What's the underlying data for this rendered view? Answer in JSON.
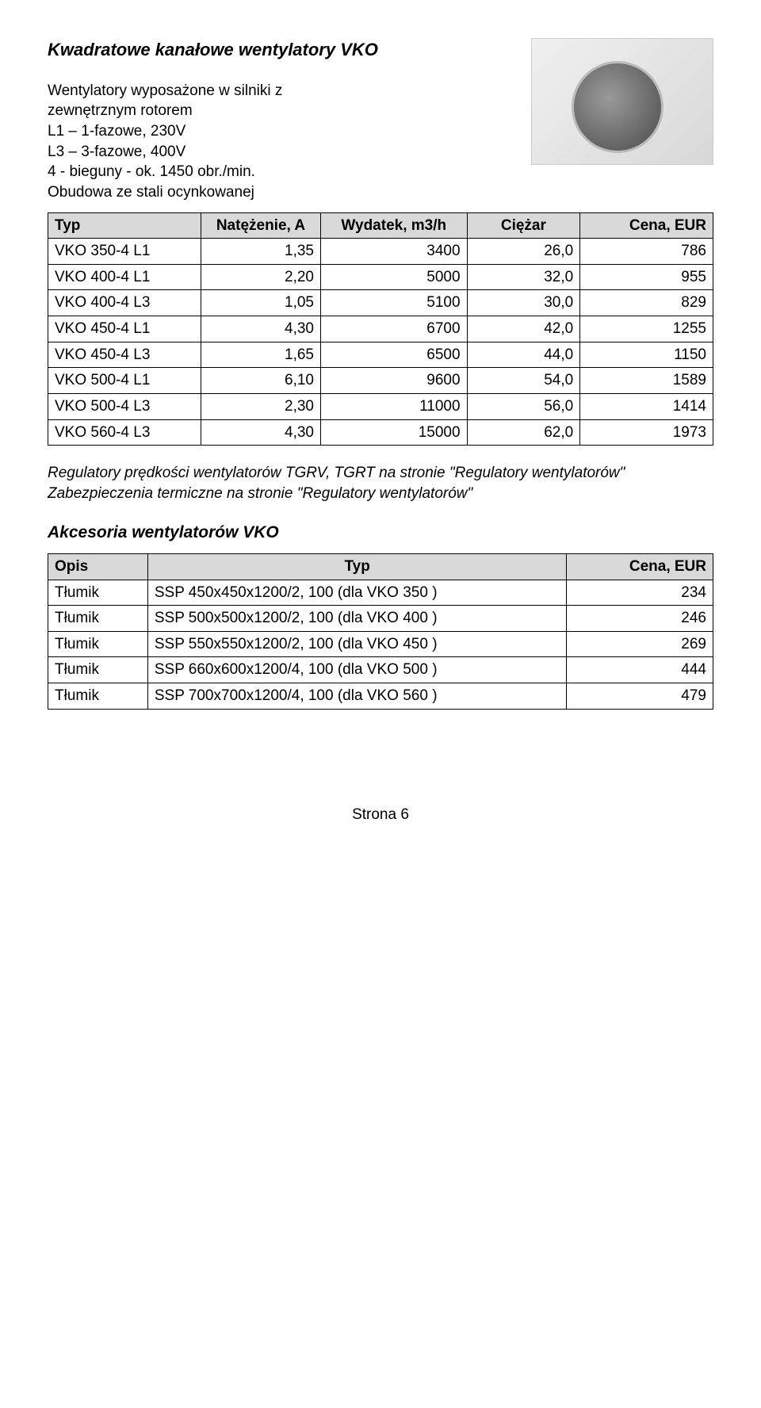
{
  "title": "Kwadratowe kanałowe wentylatory VKO",
  "description": [
    "Wentylatory wyposażone w silniki z",
    "zewnętrznym rotorem",
    "L1 – 1-fazowe, 230V",
    "L3 – 3-fazowe, 400V",
    "4 - bieguny - ok. 1450 obr./min.",
    "Obudowa ze stali ocynkowanej"
  ],
  "spec_headers": {
    "type": "Typ",
    "current": "Natężenie, A",
    "flow": "Wydatek, m3/h",
    "weight": "Ciężar",
    "price": "Cena, EUR"
  },
  "spec_rows": [
    {
      "type": "VKO 350-4  L1",
      "current": "1,35",
      "flow": "3400",
      "weight": "26,0",
      "price": "786"
    },
    {
      "type": "VKO 400-4  L1",
      "current": "2,20",
      "flow": "5000",
      "weight": "32,0",
      "price": "955"
    },
    {
      "type": "VKO 400-4  L3",
      "current": "1,05",
      "flow": "5100",
      "weight": "30,0",
      "price": "829"
    },
    {
      "type": "VKO 450-4  L1",
      "current": "4,30",
      "flow": "6700",
      "weight": "42,0",
      "price": "1255"
    },
    {
      "type": "VKO 450-4  L3",
      "current": "1,65",
      "flow": "6500",
      "weight": "44,0",
      "price": "1150"
    },
    {
      "type": "VKO 500-4  L1",
      "current": "6,10",
      "flow": "9600",
      "weight": "54,0",
      "price": "1589"
    },
    {
      "type": "VKO 500-4  L3",
      "current": "2,30",
      "flow": "11000",
      "weight": "56,0",
      "price": "1414"
    },
    {
      "type": "VKO 560-4  L3",
      "current": "4,30",
      "flow": "15000",
      "weight": "62,0",
      "price": "1973"
    }
  ],
  "notes": [
    "Regulatory prędkości wentylatorów TGRV, TGRT na stronie \"Regulatory wentylatorów\"",
    "Zabezpieczenia termiczne na stronie \"Regulatory wentylatorów\""
  ],
  "accessories_title": "Akcesoria wentylatorów VKO",
  "acc_headers": {
    "desc": "Opis",
    "type": "Typ",
    "price": "Cena, EUR"
  },
  "acc_rows": [
    {
      "desc": "Tłumik",
      "type": "SSP 450x450x1200/2, 100 (dla VKO 350 )",
      "price": "234"
    },
    {
      "desc": "Tłumik",
      "type": "SSP 500x500x1200/2, 100 (dla VKO 400 )",
      "price": "246"
    },
    {
      "desc": "Tłumik",
      "type": "SSP 550x550x1200/2, 100 (dla VKO 450 )",
      "price": "269"
    },
    {
      "desc": "Tłumik",
      "type": "SSP 660x600x1200/4, 100 (dla VKO 500 )",
      "price": "444"
    },
    {
      "desc": "Tłumik",
      "type": "SSP 700x700x1200/4, 100 (dla VKO 560 )",
      "price": "479"
    }
  ],
  "footer": "Strona 6",
  "colors": {
    "header_bg": "#d9d9d9",
    "border": "#000000",
    "text": "#000000",
    "page_bg": "#ffffff"
  }
}
